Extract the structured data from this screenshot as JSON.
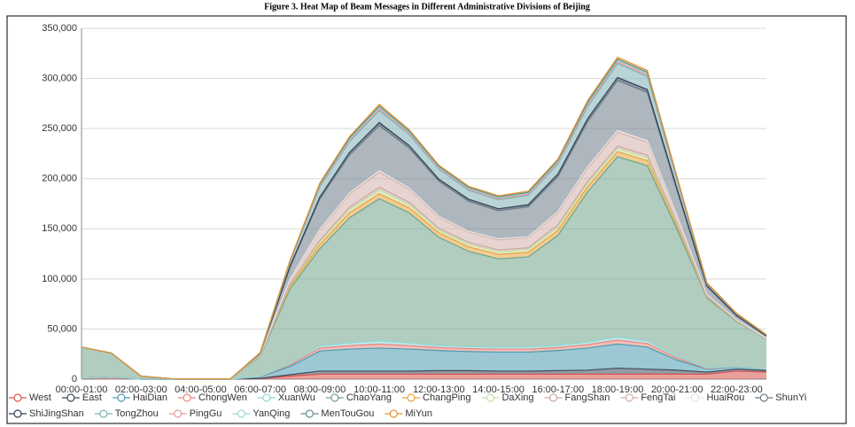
{
  "chart_data": {
    "type": "stacked-area",
    "title": "Figure 3. Heat Map of Beam Messages in Different Administrative Divisions of Beijing",
    "categories": [
      "00:00-01:00",
      null,
      "02:00-03:00",
      null,
      "04:00-05:00",
      null,
      "06:00-07:00",
      null,
      "08:00-09:00",
      null,
      "10:00-11:00",
      null,
      "12:00-13:00",
      null,
      "14:00-15:00",
      null,
      "16:00-17:00",
      null,
      "18:00-19:00",
      null,
      "20:00-21:00",
      null,
      "22:00-23:00",
      null
    ],
    "ylim": [
      0,
      350000
    ],
    "yticks": [
      0,
      {
        "value": 50000,
        "label": "50,000"
      },
      {
        "value": 100000,
        "label": "100,000"
      },
      {
        "value": 150000,
        "label": "150,000"
      },
      {
        "value": 200000,
        "label": "200,000"
      },
      {
        "value": 250000,
        "label": "250,000"
      },
      {
        "value": 300000,
        "label": "300,000"
      },
      {
        "value": 350000,
        "label": "350,000"
      }
    ],
    "grid": true,
    "legend": "bottom",
    "series": [
      {
        "name": "West",
        "color": "#d9534f",
        "values": [
          1000,
          2000,
          0,
          0,
          0,
          0,
          500,
          3000,
          5000,
          5000,
          5000,
          5000,
          5000,
          5000,
          5000,
          5000,
          5000,
          5000,
          5000,
          5000,
          5000,
          5000,
          8000,
          7000
        ]
      },
      {
        "name": "East",
        "color": "#3b4a5a",
        "values": [
          0,
          0,
          0,
          0,
          0,
          0,
          300,
          1500,
          3000,
          3000,
          3000,
          3000,
          3500,
          3500,
          3000,
          3000,
          3500,
          4000,
          6000,
          5000,
          4000,
          2000,
          2000,
          1500
        ]
      },
      {
        "name": "HaiDian",
        "color": "#4a9bb0",
        "values": [
          0,
          0,
          0,
          0,
          0,
          0,
          1500,
          8000,
          20000,
          22000,
          23000,
          22000,
          20000,
          19000,
          19000,
          19000,
          20000,
          22000,
          24000,
          22000,
          10000,
          3000,
          2000,
          1000
        ]
      },
      {
        "name": "ChongWen",
        "color": "#e8877e",
        "values": [
          0,
          0,
          0,
          0,
          0,
          0,
          300,
          1500,
          3000,
          3500,
          4000,
          3500,
          3000,
          3000,
          3000,
          3000,
          3000,
          3500,
          4000,
          3500,
          2000,
          500,
          300,
          200
        ]
      },
      {
        "name": "XuanWu",
        "color": "#8fd8d8",
        "values": [
          0,
          0,
          0,
          0,
          0,
          0,
          200,
          1000,
          2000,
          2500,
          3000,
          2500,
          2000,
          2000,
          2000,
          2000,
          2000,
          2500,
          3000,
          2500,
          1500,
          500,
          300,
          200
        ]
      },
      {
        "name": "ChaoYang",
        "color": "#6fa48a",
        "values": [
          31000,
          24000,
          3000,
          500,
          300,
          300,
          20000,
          75000,
          97000,
          125000,
          142000,
          130000,
          108000,
          95000,
          88000,
          90000,
          110000,
          150000,
          180000,
          175000,
          127000,
          70000,
          45000,
          30000
        ]
      },
      {
        "name": "ChangPing",
        "color": "#e8a33c",
        "values": [
          0,
          0,
          0,
          0,
          0,
          0,
          500,
          2500,
          4000,
          5000,
          5000,
          5000,
          4500,
          4500,
          4500,
          4500,
          5000,
          5000,
          5000,
          5000,
          3000,
          1000,
          500,
          300
        ]
      },
      {
        "name": "DaXing",
        "color": "#c9dfa0",
        "values": [
          0,
          0,
          0,
          0,
          0,
          0,
          300,
          1500,
          2500,
          3000,
          3500,
          3000,
          2500,
          2500,
          2500,
          2500,
          3000,
          3000,
          3000,
          3000,
          2000,
          500,
          300,
          200
        ]
      },
      {
        "name": "FangShan",
        "color": "#c8a9a4",
        "values": [
          0,
          0,
          0,
          0,
          0,
          0,
          200,
          1000,
          2000,
          2500,
          3000,
          2500,
          2000,
          2000,
          2000,
          2000,
          2500,
          2500,
          2500,
          2500,
          1500,
          400,
          200,
          100
        ]
      },
      {
        "name": "FengTai",
        "color": "#d3b1aa",
        "values": [
          0,
          0,
          0,
          0,
          0,
          0,
          500,
          4000,
          10000,
          13000,
          15000,
          13000,
          11000,
          10000,
          10000,
          10000,
          12000,
          13000,
          14000,
          13000,
          6000,
          1500,
          500,
          300
        ]
      },
      {
        "name": "HuaiRou",
        "color": "#e6e6e6",
        "values": [
          0,
          0,
          0,
          0,
          0,
          0,
          100,
          500,
          1000,
          1200,
          1500,
          1200,
          1000,
          1000,
          1000,
          1000,
          1200,
          1500,
          1500,
          1500,
          1000,
          300,
          100,
          100
        ]
      },
      {
        "name": "ShunYi",
        "color": "#6c7b87",
        "values": [
          0,
          0,
          0,
          0,
          0,
          0,
          1000,
          12000,
          30000,
          38000,
          45000,
          40000,
          35000,
          30000,
          28000,
          30000,
          35000,
          45000,
          50000,
          48000,
          25000,
          8000,
          4000,
          2000
        ]
      },
      {
        "name": "ShiJingShan",
        "color": "#2f3e55",
        "values": [
          0,
          0,
          0,
          0,
          0,
          0,
          200,
          1000,
          2000,
          2500,
          3000,
          2500,
          2000,
          2000,
          2000,
          2000,
          2500,
          3000,
          3000,
          3000,
          2000,
          500,
          300,
          200
        ]
      },
      {
        "name": "TongZhou",
        "color": "#7fb0b5",
        "values": [
          0,
          0,
          0,
          0,
          0,
          0,
          500,
          4000,
          10000,
          11000,
          12000,
          11000,
          10000,
          9000,
          9000,
          9500,
          10000,
          12000,
          14000,
          13000,
          8000,
          2000,
          1500,
          1000
        ]
      },
      {
        "name": "PingGu",
        "color": "#e59a9a",
        "values": [
          0,
          0,
          0,
          0,
          0,
          0,
          100,
          500,
          1000,
          1200,
          1500,
          1200,
          1000,
          1000,
          1000,
          1000,
          1200,
          1500,
          1500,
          1500,
          1000,
          300,
          200,
          100
        ]
      },
      {
        "name": "YanQing",
        "color": "#9fd6d6",
        "values": [
          0,
          0,
          0,
          0,
          0,
          0,
          100,
          500,
          1000,
          1200,
          1500,
          1200,
          1000,
          1000,
          1000,
          1000,
          1200,
          1500,
          1500,
          1500,
          1000,
          300,
          200,
          100
        ]
      },
      {
        "name": "MenTouGou",
        "color": "#5f8f8f",
        "values": [
          0,
          0,
          0,
          0,
          0,
          0,
          100,
          400,
          800,
          1000,
          1200,
          1000,
          800,
          800,
          800,
          800,
          1000,
          1200,
          1200,
          1200,
          800,
          200,
          100,
          100
        ]
      },
      {
        "name": "MiYun",
        "color": "#e0952f",
        "values": [
          0,
          0,
          0,
          0,
          0,
          0,
          200,
          600,
          1200,
          1500,
          2000,
          1500,
          1200,
          1200,
          1200,
          1200,
          1500,
          2000,
          2000,
          2000,
          1200,
          300,
          200,
          100
        ]
      }
    ]
  }
}
